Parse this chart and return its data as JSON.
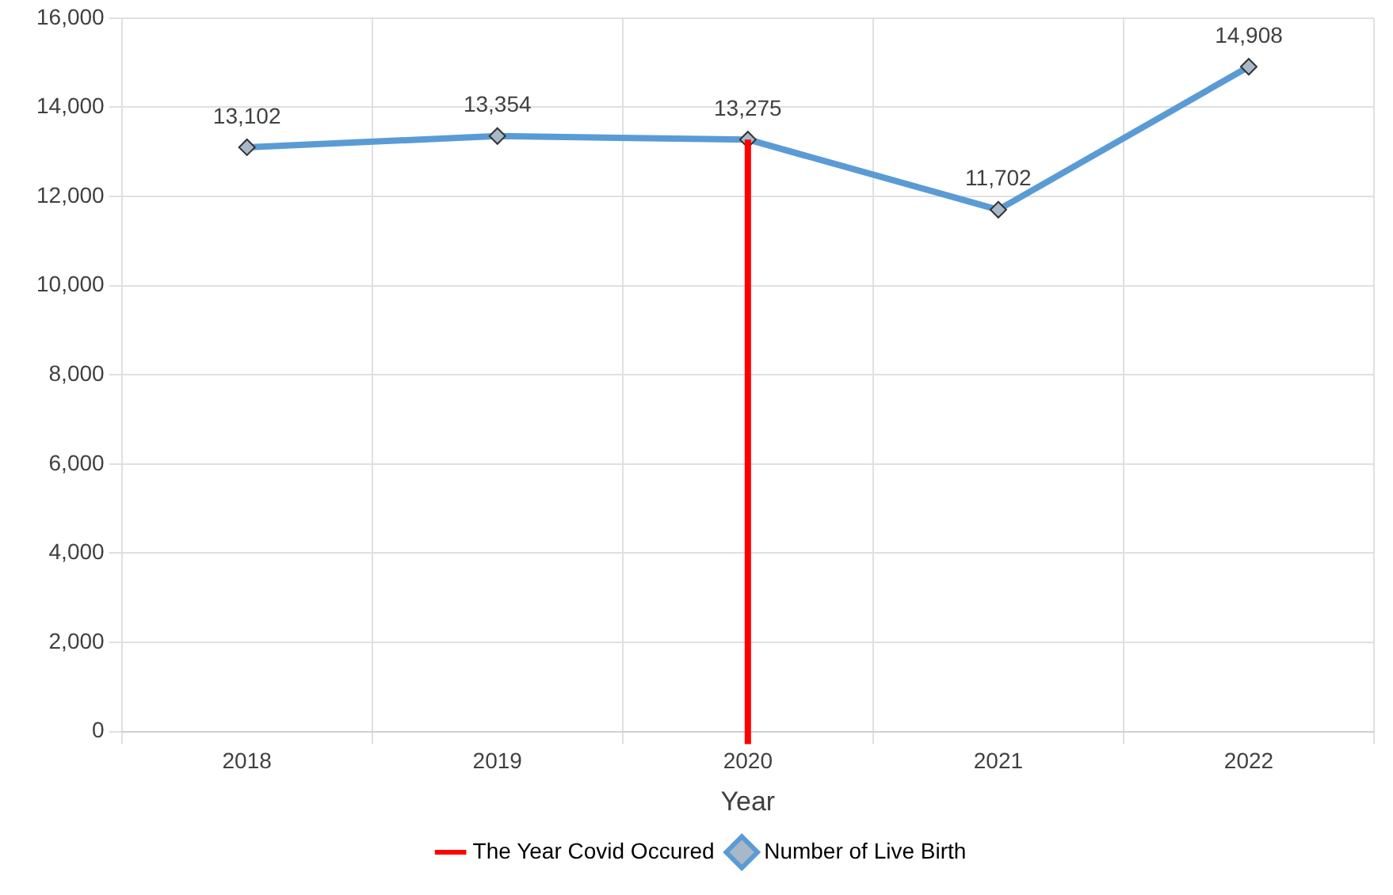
{
  "chart_data": {
    "type": "line",
    "xlabel": "Year",
    "categories": [
      "2018",
      "2019",
      "2020",
      "2021",
      "2022"
    ],
    "series": [
      {
        "name": "Number of Live Birth",
        "color": "#5b9bd5",
        "values": [
          13102,
          13354,
          13275,
          11702,
          14908
        ],
        "value_labels": [
          "13,102",
          "13,354",
          "13,275",
          "11,702",
          "14,908"
        ]
      }
    ],
    "ylim": [
      0,
      16000
    ],
    "yticks": [
      0,
      {
        "value": 2000,
        "label": "2,000"
      },
      {
        "value": 4000,
        "label": "4,000"
      },
      {
        "value": 6000,
        "label": "6,000"
      },
      {
        "value": 8000,
        "label": "8,000"
      },
      {
        "value": 10000,
        "label": "10,000"
      },
      {
        "value": 12000,
        "label": "12,000"
      },
      {
        "value": 14000,
        "label": "14,000"
      },
      {
        "value": 16000,
        "label": "16,000"
      }
    ],
    "ref_lines": [
      {
        "axis": "x",
        "value": "2020",
        "label": "The Year Covid Occured",
        "color": "#ff0000"
      }
    ],
    "grid": true,
    "legend": "bottom",
    "marker": "diamond",
    "line_style": "solid"
  }
}
